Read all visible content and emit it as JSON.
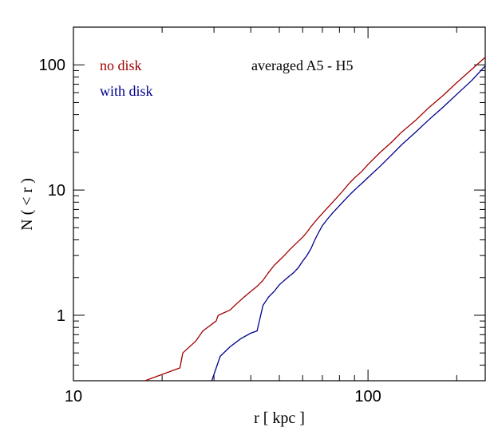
{
  "chart_data": {
    "type": "line",
    "xscale": "log",
    "yscale": "log",
    "xlim": [
      10,
      250
    ],
    "ylim": [
      0.3,
      200
    ],
    "xlabel": "r  [ kpc ]",
    "ylabel": "N ( < r )",
    "x_ticks": [
      10,
      100
    ],
    "x_tick_labels": [
      "10",
      "100"
    ],
    "y_ticks": [
      1,
      10,
      100
    ],
    "y_tick_labels": [
      "1",
      "10",
      "100"
    ],
    "annotation": "averaged A5 - H5",
    "grid": false,
    "legend_position": "top-left",
    "series": [
      {
        "name": "no disk",
        "color": "#a00000",
        "x": [
          17.5,
          23.0,
          23.5,
          26.0,
          27.5,
          30.5,
          31.0,
          34.0,
          36.0,
          38.0,
          40.0,
          42.0,
          44.0,
          46.0,
          48.0,
          50.0,
          52.0,
          54.0,
          56.0,
          58.0,
          60.0,
          62.0,
          64.0,
          67.0,
          70.0,
          74.0,
          78.0,
          82.0,
          86.0,
          90.0,
          95.0,
          100.0,
          110.0,
          120.0,
          130.0,
          145.0,
          160.0,
          180.0,
          200.0,
          225.0,
          250.0
        ],
        "y": [
          0.3,
          0.38,
          0.5,
          0.62,
          0.75,
          0.9,
          1.0,
          1.1,
          1.25,
          1.4,
          1.55,
          1.7,
          1.9,
          2.2,
          2.5,
          2.75,
          3.0,
          3.3,
          3.6,
          3.9,
          4.2,
          4.6,
          5.1,
          5.8,
          6.5,
          7.5,
          8.6,
          9.8,
          11.2,
          12.5,
          14.0,
          16.0,
          20.0,
          24.0,
          29.0,
          36.0,
          45.0,
          57.0,
          72.0,
          92.0,
          115.0
        ]
      },
      {
        "name": "with disk",
        "color": "#00008b",
        "x": [
          29.5,
          31.5,
          34.0,
          37.0,
          40.0,
          42.0,
          44.0,
          46.0,
          48.0,
          50.0,
          52.0,
          54.0,
          56.0,
          58.0,
          60.0,
          62.0,
          64.0,
          66.0,
          68.0,
          70.0,
          73.0,
          76.0,
          80.0,
          84.0,
          88.0,
          92.0,
          96.0,
          100.0,
          110.0,
          120.0,
          130.0,
          145.0,
          160.0,
          180.0,
          200.0,
          225.0,
          250.0
        ],
        "y": [
          0.3,
          0.47,
          0.56,
          0.65,
          0.72,
          0.75,
          1.2,
          1.4,
          1.55,
          1.75,
          1.9,
          2.05,
          2.2,
          2.4,
          2.7,
          3.0,
          3.4,
          4.0,
          4.6,
          5.2,
          5.9,
          6.6,
          7.5,
          8.5,
          9.5,
          10.5,
          11.5,
          12.6,
          15.5,
          19.0,
          23.0,
          29.0,
          36.0,
          46.0,
          58.0,
          75.0,
          98.0
        ]
      }
    ]
  }
}
